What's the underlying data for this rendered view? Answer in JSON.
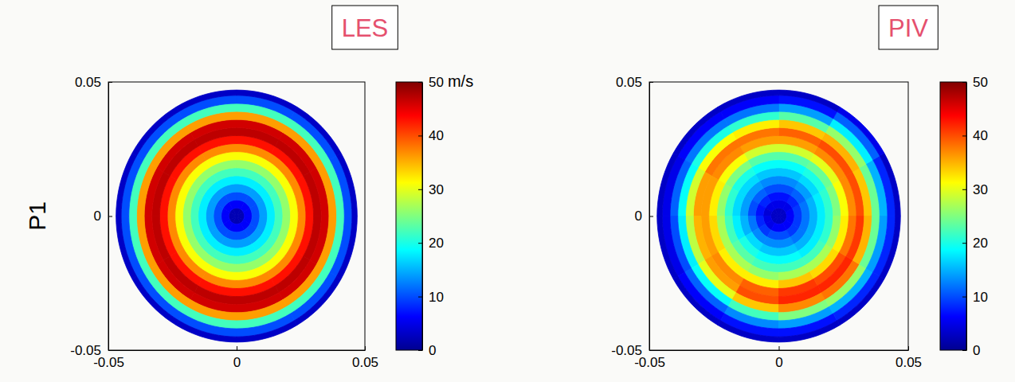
{
  "chart_data": [
    {
      "type": "heatmap",
      "title": "LES",
      "ylabel": "P1",
      "xlim": [
        -0.05,
        0.05
      ],
      "ylim": [
        -0.05,
        0.05
      ],
      "xticks": [
        -0.05,
        0,
        0.05
      ],
      "yticks": [
        -0.05,
        0,
        0.05
      ],
      "r_edges": [
        0,
        0.003,
        0.006,
        0.009,
        0.012,
        0.015,
        0.018,
        0.021,
        0.024,
        0.027,
        0.03,
        0.033,
        0.036,
        0.039,
        0.042,
        0.045,
        0.047
      ],
      "theta_edges": [
        0,
        30,
        60,
        90,
        120,
        150,
        180,
        210,
        240,
        270,
        300,
        330,
        360
      ],
      "cells": [
        [
          2,
          2,
          2,
          2,
          2,
          2,
          2,
          2,
          2,
          2,
          2,
          2
        ],
        [
          6,
          6,
          6,
          6,
          6,
          6,
          6,
          6,
          6,
          6,
          6,
          6
        ],
        [
          10,
          10,
          10,
          10,
          10,
          10,
          10,
          10,
          10,
          10,
          10,
          10
        ],
        [
          14,
          14,
          14,
          14,
          14,
          14,
          14,
          14,
          14,
          14,
          14,
          14
        ],
        [
          18,
          18,
          18,
          18,
          18,
          18,
          18,
          18,
          18,
          18,
          18,
          18
        ],
        [
          22,
          22,
          22,
          22,
          22,
          22,
          22,
          22,
          22,
          22,
          22,
          22
        ],
        [
          26,
          26,
          26,
          26,
          26,
          26,
          26,
          26,
          26,
          26,
          26,
          26
        ],
        [
          31,
          31,
          31,
          31,
          31,
          31,
          31,
          31,
          31,
          31,
          31,
          31
        ],
        [
          37,
          37,
          37,
          37,
          37,
          37,
          37,
          37,
          37,
          37,
          37,
          37
        ],
        [
          43,
          43,
          43,
          43,
          43,
          43,
          43,
          43,
          43,
          43,
          43,
          43
        ],
        [
          47,
          47,
          47,
          47,
          47,
          47,
          47,
          47,
          47,
          47,
          47,
          47
        ],
        [
          46,
          46,
          46,
          46,
          46,
          46,
          46,
          46,
          46,
          46,
          46,
          46
        ],
        [
          36,
          36,
          36,
          36,
          36,
          36,
          36,
          36,
          36,
          36,
          36,
          36
        ],
        [
          22,
          22,
          22,
          22,
          22,
          22,
          22,
          22,
          22,
          22,
          22,
          22
        ],
        [
          10,
          10,
          10,
          10,
          10,
          10,
          10,
          10,
          10,
          10,
          10,
          10
        ],
        [
          3,
          3,
          3,
          3,
          3,
          3,
          3,
          3,
          3,
          3,
          3,
          3
        ]
      ],
      "colorbar_range": [
        0,
        50
      ],
      "colorbar_ticks": [
        0,
        10,
        20,
        30,
        40,
        50
      ],
      "colorbar_label": "m/s"
    },
    {
      "type": "heatmap",
      "title": "PIV",
      "xlim": [
        -0.05,
        0.05
      ],
      "ylim": [
        -0.05,
        0.05
      ],
      "xticks": [
        -0.05,
        0,
        0.05
      ],
      "yticks": [
        -0.05,
        0,
        0.05
      ],
      "r_edges": [
        0,
        0.003,
        0.006,
        0.009,
        0.012,
        0.015,
        0.018,
        0.021,
        0.024,
        0.027,
        0.03,
        0.033,
        0.036,
        0.039,
        0.042,
        0.045,
        0.047
      ],
      "theta_edges": [
        0,
        30,
        60,
        90,
        120,
        150,
        180,
        210,
        240,
        270,
        300,
        330,
        360
      ],
      "cells": [
        [
          3,
          3,
          3,
          3,
          3,
          3,
          3,
          3,
          3,
          3,
          3,
          3
        ],
        [
          6,
          5,
          5,
          5,
          5,
          4,
          5,
          5,
          6,
          6,
          6,
          6
        ],
        [
          9,
          8,
          7,
          7,
          8,
          7,
          8,
          9,
          10,
          10,
          9,
          9
        ],
        [
          12,
          11,
          10,
          10,
          11,
          10,
          12,
          13,
          13,
          13,
          12,
          12
        ],
        [
          15,
          14,
          13,
          13,
          14,
          14,
          15,
          17,
          16,
          16,
          15,
          15
        ],
        [
          18,
          17,
          16,
          16,
          17,
          17,
          18,
          20,
          19,
          19,
          18,
          18
        ],
        [
          21,
          20,
          19,
          19,
          20,
          21,
          22,
          23,
          22,
          22,
          22,
          21
        ],
        [
          25,
          24,
          23,
          23,
          25,
          26,
          27,
          27,
          26,
          27,
          27,
          26
        ],
        [
          31,
          30,
          29,
          29,
          31,
          32,
          33,
          32,
          32,
          34,
          33,
          32
        ],
        [
          37,
          37,
          36,
          36,
          37,
          36,
          36,
          37,
          39,
          41,
          40,
          38
        ],
        [
          40,
          40,
          39,
          38,
          38,
          36,
          35,
          36,
          40,
          42,
          42,
          41
        ],
        [
          34,
          35,
          34,
          32,
          31,
          29,
          28,
          30,
          34,
          37,
          38,
          35
        ],
        [
          24,
          26,
          23,
          21,
          20,
          19,
          18,
          19,
          22,
          25,
          26,
          24
        ],
        [
          15,
          18,
          14,
          12,
          12,
          11,
          10,
          11,
          13,
          14,
          15,
          14
        ],
        [
          8,
          11,
          7,
          6,
          6,
          5,
          5,
          6,
          7,
          7,
          8,
          8
        ],
        [
          3,
          5,
          3,
          3,
          3,
          3,
          3,
          3,
          3,
          3,
          3,
          3
        ]
      ],
      "colorbar_range": [
        0,
        50
      ],
      "colorbar_ticks": [
        0,
        10,
        20,
        30,
        40,
        50
      ]
    }
  ]
}
